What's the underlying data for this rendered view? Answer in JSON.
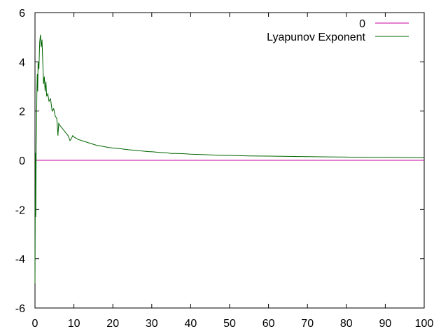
{
  "chart_data": {
    "type": "line",
    "title": "",
    "xlabel": "",
    "ylabel": "",
    "xlim": [
      0,
      100
    ],
    "ylim": [
      -6,
      6
    ],
    "xticks": [
      0,
      10,
      20,
      30,
      40,
      50,
      60,
      70,
      80,
      90,
      100
    ],
    "yticks": [
      -6,
      -4,
      -2,
      0,
      2,
      4,
      6
    ],
    "grid": false,
    "legend_position": "top-right",
    "series": [
      {
        "name": "0",
        "color": "#cc00a0",
        "x": [
          0,
          100
        ],
        "y": [
          0,
          0
        ]
      },
      {
        "name": "Lyapunov Exponent",
        "color": "#006400",
        "x": [
          0.0,
          0.1,
          0.2,
          0.3,
          0.4,
          0.5,
          0.6,
          0.7,
          0.8,
          1.0,
          1.2,
          1.4,
          1.6,
          1.8,
          2.0,
          2.2,
          2.4,
          2.6,
          2.8,
          3.0,
          3.3,
          3.6,
          4.0,
          4.4,
          4.8,
          5.2,
          5.6,
          5.9,
          6.1,
          6.5,
          7.0,
          7.5,
          8.0,
          8.5,
          9.0,
          9.4,
          9.7,
          10.0,
          11.0,
          12.0,
          13.0,
          14.0,
          15.0,
          16.0,
          17.0,
          18.0,
          19.0,
          20.0,
          22.0,
          24.0,
          26.0,
          28.0,
          29.5,
          30.0,
          32.0,
          34.0,
          35.0,
          36.0,
          38.0,
          40.0,
          42.0,
          45.0,
          48.0,
          50.0,
          55.0,
          60.0,
          65.0,
          70.0,
          75.0,
          80.0,
          85.0,
          90.0,
          95.0,
          100.0
        ],
        "y": [
          -5.0,
          0.3,
          -2.3,
          0.5,
          1.2,
          3.0,
          3.5,
          2.8,
          4.0,
          3.7,
          4.8,
          5.1,
          4.6,
          4.9,
          4.0,
          3.1,
          3.4,
          2.8,
          3.2,
          2.6,
          2.7,
          2.4,
          2.5,
          2.0,
          2.1,
          1.8,
          1.7,
          1.0,
          1.5,
          1.4,
          1.3,
          1.2,
          1.1,
          1.0,
          0.8,
          0.9,
          1.0,
          0.95,
          0.85,
          0.8,
          0.75,
          0.7,
          0.65,
          0.6,
          0.58,
          0.55,
          0.52,
          0.5,
          0.47,
          0.43,
          0.4,
          0.37,
          0.35,
          0.35,
          0.32,
          0.3,
          0.28,
          0.28,
          0.27,
          0.25,
          0.24,
          0.22,
          0.2,
          0.2,
          0.18,
          0.17,
          0.16,
          0.15,
          0.14,
          0.13,
          0.12,
          0.12,
          0.11,
          0.1
        ]
      }
    ]
  }
}
